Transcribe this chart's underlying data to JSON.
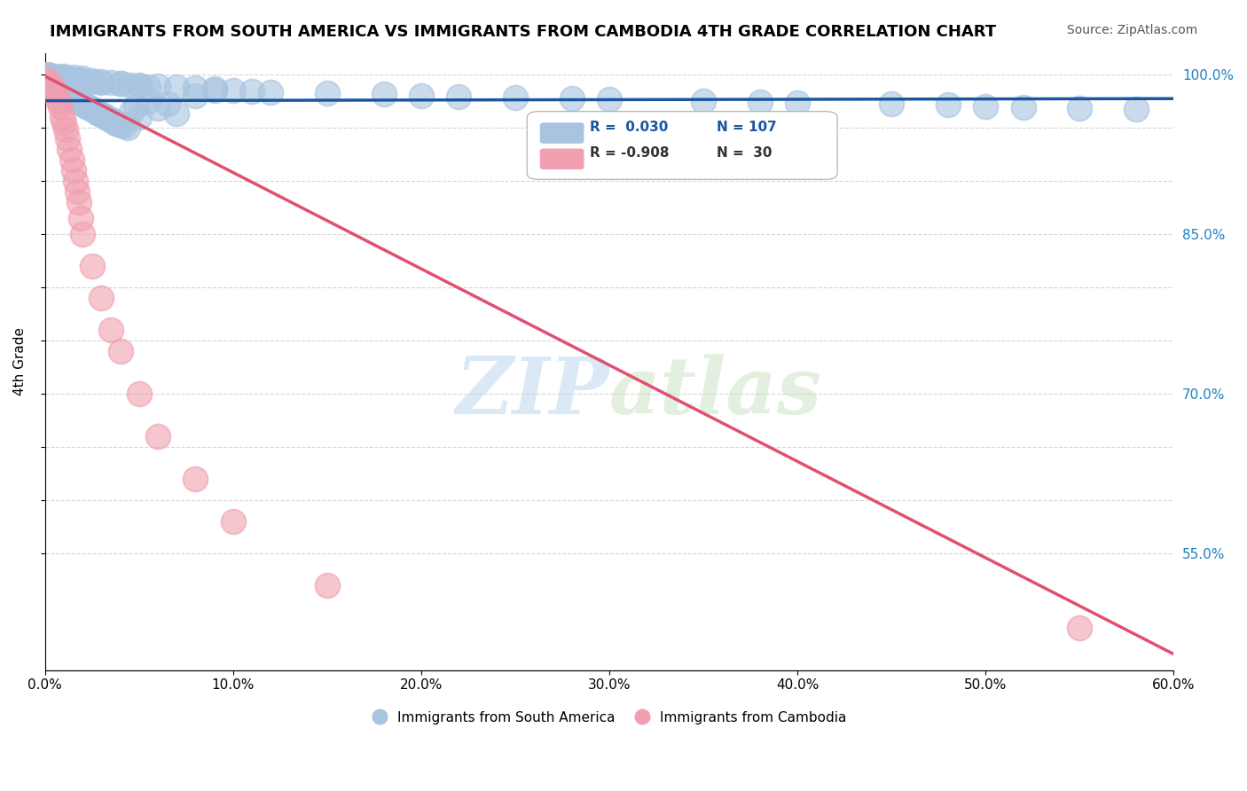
{
  "title": "IMMIGRANTS FROM SOUTH AMERICA VS IMMIGRANTS FROM CAMBODIA 4TH GRADE CORRELATION CHART",
  "source": "Source: ZipAtlas.com",
  "ylabel": "4th Grade",
  "xmin": 0.0,
  "xmax": 0.6,
  "ymin": 0.44,
  "ymax": 1.02,
  "blue_color": "#a8c4e0",
  "pink_color": "#f0a0b0",
  "blue_line_color": "#1a56a0",
  "pink_line_color": "#e05070",
  "legend_R_blue": "R =  0.030",
  "legend_N_blue": "N = 107",
  "legend_R_pink": "R = -0.908",
  "legend_N_pink": "N =  30",
  "watermark_zip": "ZIP",
  "watermark_atlas": "atlas",
  "grid_color": "#cccccc",
  "blue_scatter_x": [
    0.002,
    0.003,
    0.004,
    0.005,
    0.006,
    0.007,
    0.008,
    0.009,
    0.01,
    0.011,
    0.012,
    0.013,
    0.014,
    0.015,
    0.016,
    0.017,
    0.018,
    0.019,
    0.02,
    0.021,
    0.022,
    0.023,
    0.024,
    0.025,
    0.026,
    0.027,
    0.028,
    0.029,
    0.03,
    0.031,
    0.032,
    0.033,
    0.034,
    0.035,
    0.036,
    0.037,
    0.038,
    0.039,
    0.04,
    0.042,
    0.044,
    0.046,
    0.048,
    0.05,
    0.055,
    0.06,
    0.065,
    0.07,
    0.08,
    0.09,
    0.01,
    0.015,
    0.02,
    0.025,
    0.03,
    0.035,
    0.04,
    0.045,
    0.05,
    0.055,
    0.003,
    0.006,
    0.009,
    0.012,
    0.016,
    0.02,
    0.025,
    0.03,
    0.04,
    0.05,
    0.06,
    0.07,
    0.08,
    0.09,
    0.1,
    0.11,
    0.12,
    0.15,
    0.18,
    0.2,
    0.22,
    0.25,
    0.28,
    0.3,
    0.35,
    0.38,
    0.4,
    0.45,
    0.48,
    0.5,
    0.52,
    0.55,
    0.58,
    0.001,
    0.002,
    0.003,
    0.004,
    0.005,
    0.006,
    0.007,
    0.008,
    0.009,
    0.01,
    0.011,
    0.012,
    0.013,
    0.014
  ],
  "blue_scatter_y": [
    0.995,
    0.993,
    0.991,
    0.99,
    0.988,
    0.987,
    0.985,
    0.984,
    0.982,
    0.981,
    0.98,
    0.979,
    0.978,
    0.977,
    0.976,
    0.975,
    0.974,
    0.973,
    0.972,
    0.971,
    0.97,
    0.969,
    0.968,
    0.967,
    0.966,
    0.965,
    0.964,
    0.963,
    0.962,
    0.961,
    0.96,
    0.959,
    0.958,
    0.957,
    0.956,
    0.955,
    0.954,
    0.953,
    0.952,
    0.951,
    0.95,
    0.965,
    0.97,
    0.96,
    0.975,
    0.968,
    0.972,
    0.963,
    0.98,
    0.985,
    0.998,
    0.997,
    0.996,
    0.994,
    0.993,
    0.992,
    0.991,
    0.99,
    0.989,
    0.988,
    0.999,
    0.998,
    0.997,
    0.996,
    0.995,
    0.994,
    0.993,
    0.992,
    0.991,
    0.99,
    0.989,
    0.988,
    0.987,
    0.986,
    0.985,
    0.984,
    0.983,
    0.982,
    0.981,
    0.98,
    0.979,
    0.978,
    0.977,
    0.976,
    0.975,
    0.974,
    0.973,
    0.972,
    0.971,
    0.97,
    0.969,
    0.968,
    0.967,
    1.0,
    0.999,
    0.998,
    0.997,
    0.996,
    0.995,
    0.994,
    0.993,
    0.992,
    0.991,
    0.99,
    0.989,
    0.988,
    0.987
  ],
  "pink_scatter_x": [
    0.001,
    0.002,
    0.003,
    0.004,
    0.005,
    0.006,
    0.007,
    0.008,
    0.009,
    0.01,
    0.011,
    0.012,
    0.013,
    0.014,
    0.015,
    0.016,
    0.017,
    0.018,
    0.019,
    0.02,
    0.025,
    0.03,
    0.035,
    0.04,
    0.05,
    0.06,
    0.08,
    0.1,
    0.15,
    0.55
  ],
  "pink_scatter_y": [
    0.995,
    0.993,
    0.99,
    0.988,
    0.985,
    0.98,
    0.975,
    0.97,
    0.96,
    0.955,
    0.948,
    0.94,
    0.93,
    0.92,
    0.91,
    0.9,
    0.89,
    0.88,
    0.865,
    0.85,
    0.82,
    0.79,
    0.76,
    0.74,
    0.7,
    0.66,
    0.62,
    0.58,
    0.52,
    0.48
  ],
  "blue_line_x": [
    0.0,
    0.6
  ],
  "blue_line_y": [
    0.975,
    0.977
  ],
  "pink_line_x": [
    0.0,
    0.6
  ],
  "pink_line_y": [
    0.998,
    0.455
  ],
  "legend_label_blue": "Immigrants from South America",
  "legend_label_pink": "Immigrants from Cambodia"
}
